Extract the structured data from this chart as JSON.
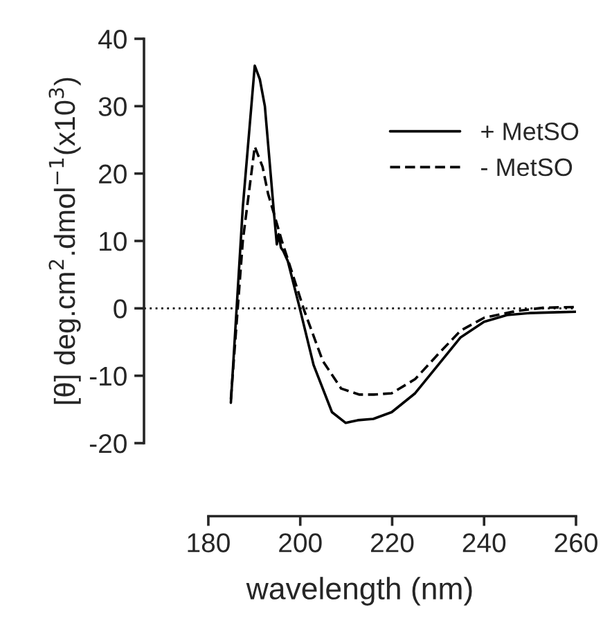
{
  "chart_data": {
    "type": "line",
    "xlabel": "wavelength (nm)",
    "ylabel": "[θ] deg.cm$^{2}$.dmol$^{−1}$(x10$^{3}$)",
    "xlim": [
      166,
      260
    ],
    "xticks": [
      180,
      200,
      220,
      240,
      260
    ],
    "ylim": [
      -20,
      40
    ],
    "yticks": [
      -20,
      -10,
      0,
      10,
      20,
      30,
      40
    ],
    "grid": false,
    "legend": "top right",
    "marker": "none",
    "ref_lines": [
      {
        "axis": "y",
        "value": 0,
        "line_style": "dotted",
        "color": "#000000"
      }
    ],
    "series": [
      {
        "name": "+ MetSO",
        "color": "#000000",
        "line_style": "solid",
        "x": [
          184.9,
          187.5,
          190.1,
          191.2,
          192.3,
          193.3,
          194.3,
          194.9,
          195.3,
          195.8,
          196.3,
          197.3,
          199.9,
          202.9,
          206.9,
          209.9,
          212.5,
          215.9,
          219.9,
          225,
          230,
          234.9,
          240,
          245,
          250,
          255,
          260
        ],
        "values": [
          -14,
          15,
          36,
          34,
          30,
          22,
          14,
          9.5,
          11,
          9,
          8.5,
          7,
          0,
          -8.4,
          -15.4,
          -17,
          -16.6,
          -16.4,
          -15.4,
          -12.6,
          -8.4,
          -4.3,
          -2,
          -1,
          -0.7,
          -0.6,
          -0.5
        ]
      },
      {
        "name": "- MetSO",
        "color": "#000000",
        "line_style": "dashed",
        "x": [
          184.9,
          187.5,
          190.1,
          191.8,
          193,
          194.3,
          196,
          197.9,
          200.9,
          204.9,
          208.9,
          212.9,
          216,
          219.9,
          225,
          230,
          234.9,
          240,
          247,
          253,
          260
        ],
        "values": [
          -13.5,
          10,
          24,
          21,
          17,
          14,
          10,
          6,
          -0.4,
          -7.8,
          -11.9,
          -12.8,
          -12.8,
          -12.6,
          -10.5,
          -6.8,
          -3.3,
          -1.4,
          -0.4,
          0.1,
          0.2
        ]
      }
    ]
  }
}
